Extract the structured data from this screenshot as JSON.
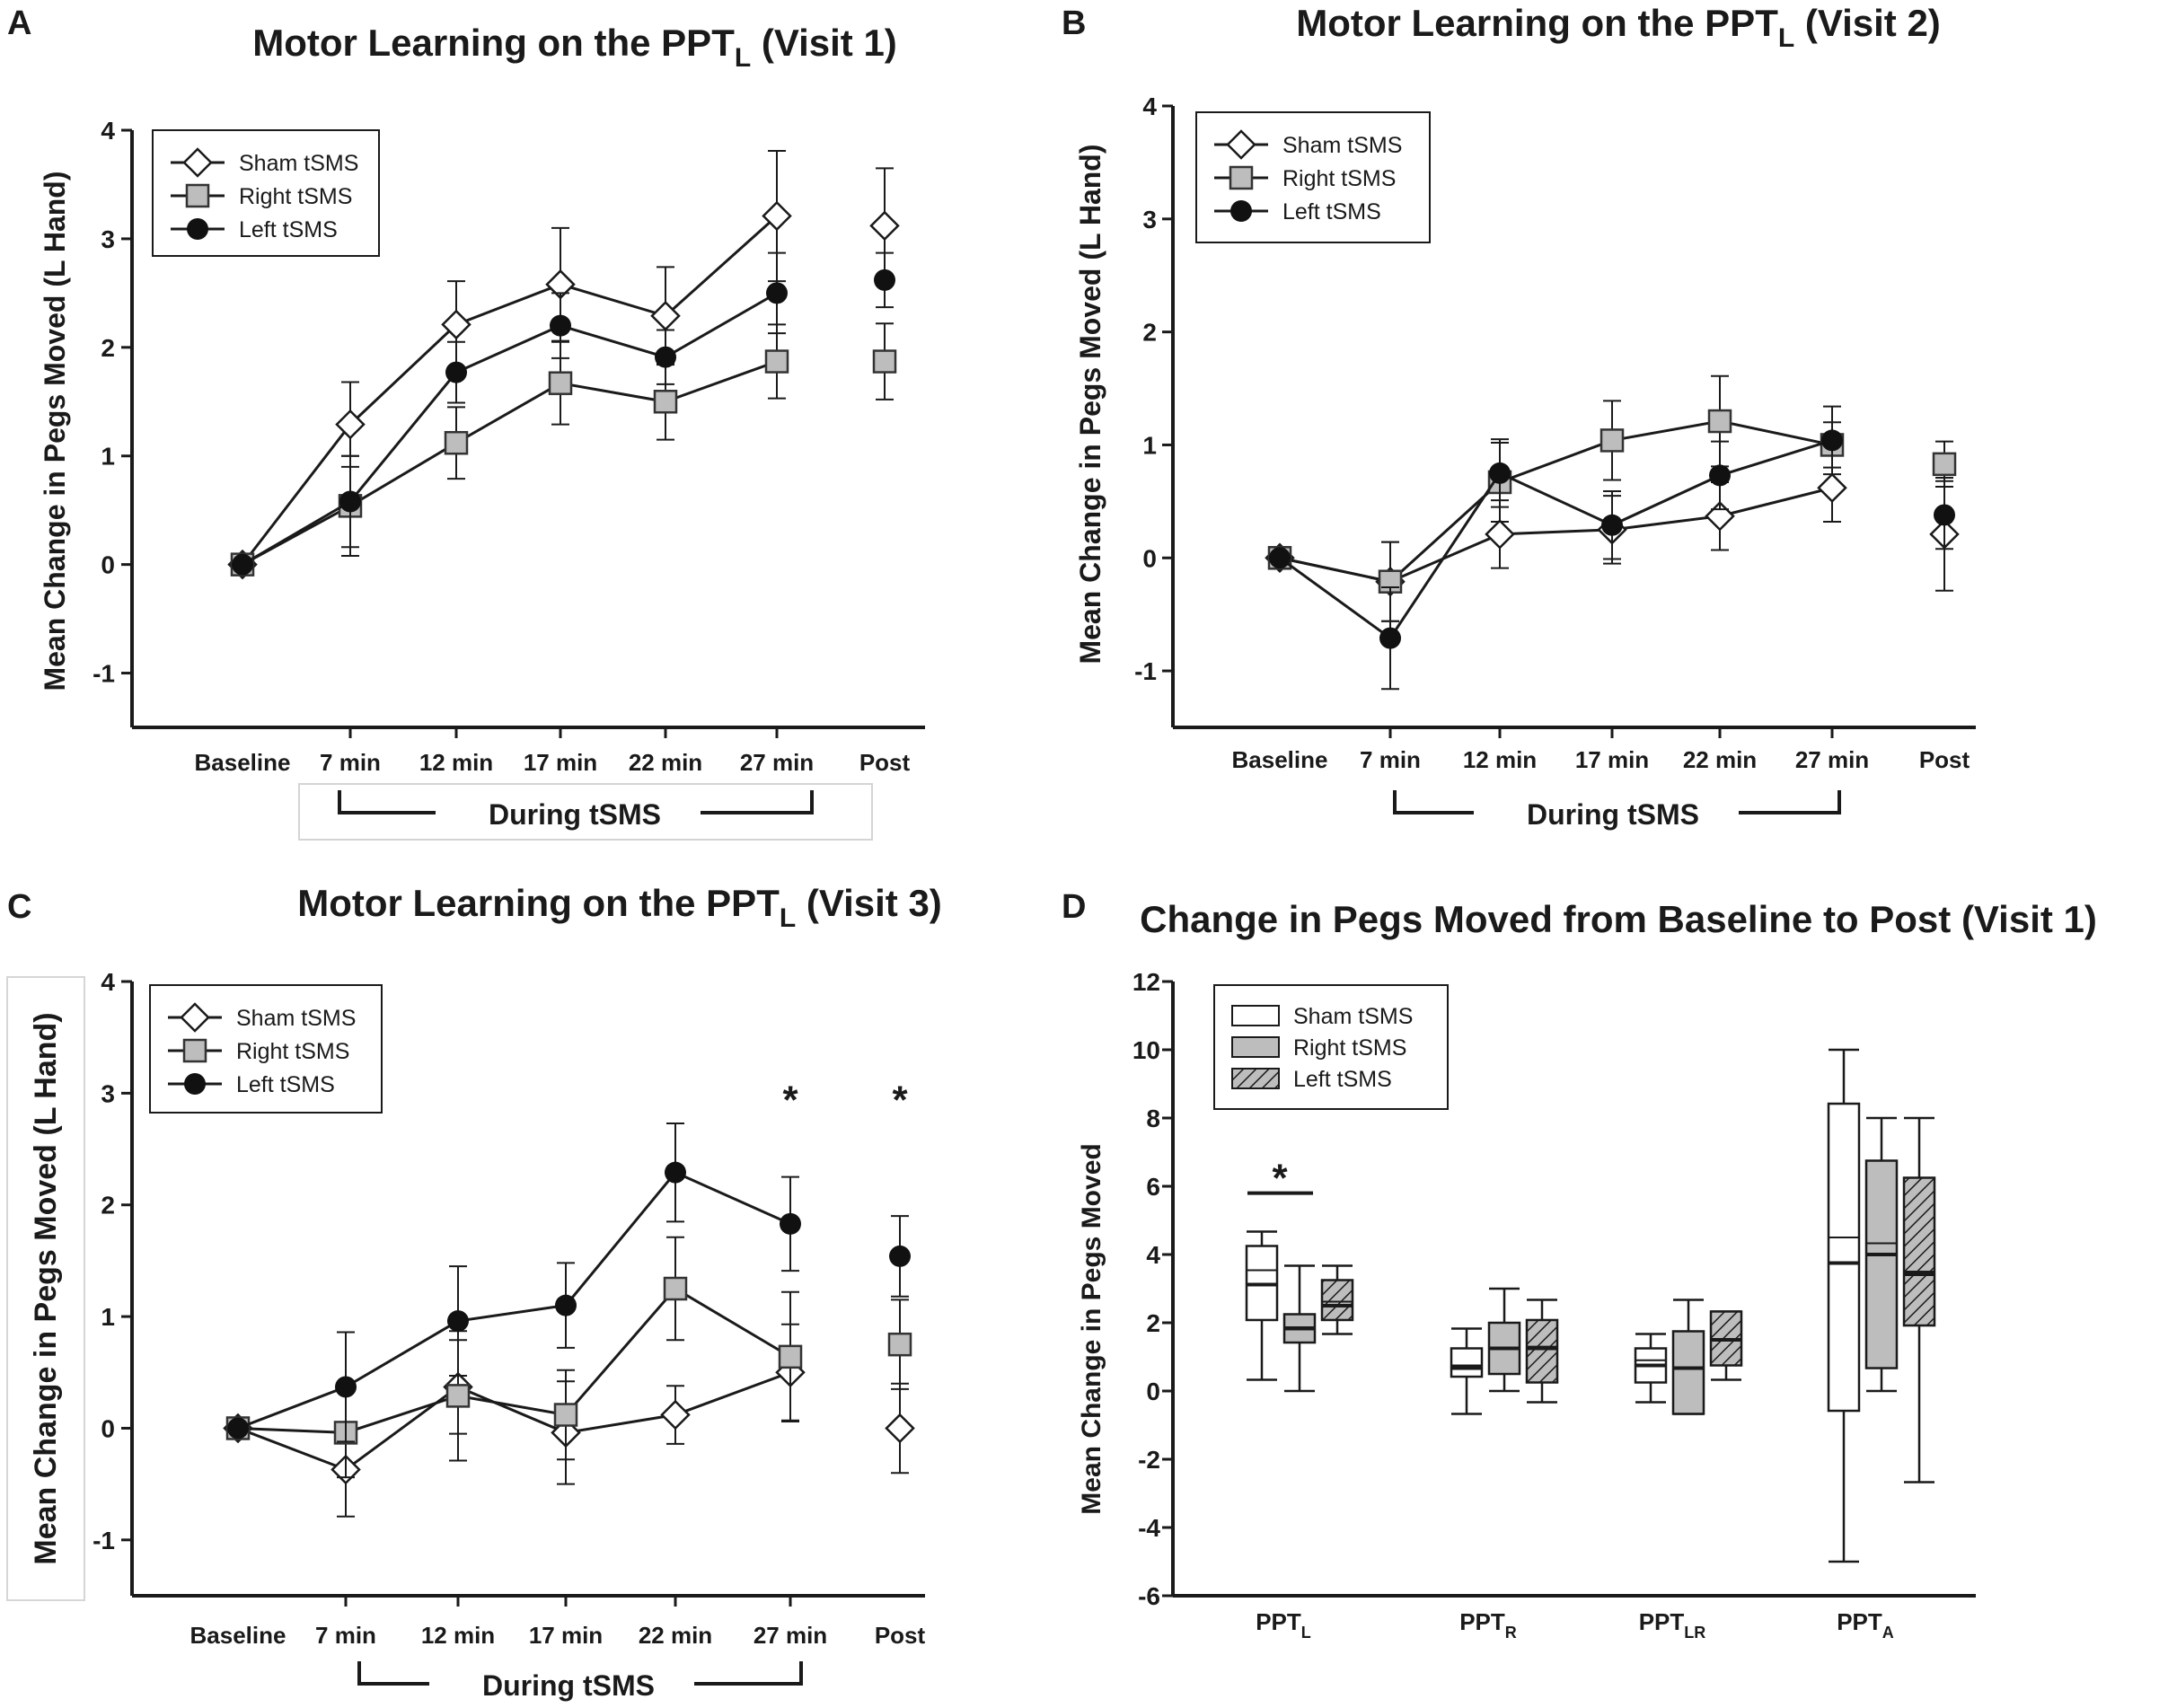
{
  "chart_data": [
    {
      "panel": "A",
      "type": "line",
      "title": "Motor Learning on the PPT",
      "title_sub": "L",
      "title_suffix": " (Visit 1)",
      "ylabel": "Mean Change in Pegs Moved (L Hand)",
      "xlabel": "",
      "categories": [
        "Baseline",
        "7 min",
        "12 min",
        "17 min",
        "22 min",
        "27 min",
        "Post"
      ],
      "ylim": [
        -1.5,
        4
      ],
      "yticks": [
        -1,
        0,
        1,
        2,
        3,
        4
      ],
      "bracket_label": "During tSMS",
      "legend": [
        "Sham tSMS",
        "Right tSMS",
        "Left tSMS"
      ],
      "series": [
        {
          "name": "Sham tSMS",
          "marker": "diamond",
          "values": [
            0,
            1.29,
            2.21,
            2.58,
            2.29,
            3.21,
            3.12
          ],
          "errors": [
            0,
            0.39,
            0.4,
            0.52,
            0.45,
            0.6,
            0.53
          ]
        },
        {
          "name": "Right tSMS",
          "marker": "square",
          "values": [
            0,
            0.54,
            1.12,
            1.67,
            1.5,
            1.87,
            1.87
          ],
          "errors": [
            0,
            0.46,
            0.33,
            0.38,
            0.35,
            0.34,
            0.35
          ]
        },
        {
          "name": "Left tSMS",
          "marker": "circle",
          "values": [
            0,
            0.58,
            1.77,
            2.2,
            1.91,
            2.5,
            2.62
          ],
          "errors": [
            0,
            0.42,
            0.28,
            0.3,
            0.25,
            0.37,
            0.25
          ]
        }
      ],
      "annotations": []
    },
    {
      "panel": "B",
      "type": "line",
      "title": "Motor Learning on the PPT",
      "title_sub": "L",
      "title_suffix": " (Visit 2)",
      "ylabel": "Mean Change in Pegs Moved (L Hand)",
      "xlabel": "",
      "categories": [
        "Baseline",
        "7 min",
        "12 min",
        "17 min",
        "22 min",
        "27 min",
        "Post"
      ],
      "ylim": [
        -1.5,
        4
      ],
      "yticks": [
        -1,
        0,
        1,
        2,
        3,
        4
      ],
      "bracket_label": "During tSMS",
      "legend": [
        "Sham tSMS",
        "Right tSMS",
        "Left tSMS"
      ],
      "series": [
        {
          "name": "Sham tSMS",
          "marker": "diamond",
          "values": [
            0,
            -0.21,
            0.21,
            0.25,
            0.37,
            0.62,
            0.21
          ],
          "errors": [
            0,
            0.35,
            0.3,
            0.3,
            0.3,
            0.3,
            0.5
          ]
        },
        {
          "name": "Right tSMS",
          "marker": "square",
          "values": [
            0,
            -0.21,
            0.67,
            1.04,
            1.21,
            1.0,
            0.83
          ],
          "errors": [
            0,
            0.35,
            0.35,
            0.35,
            0.4,
            0.2,
            0.2
          ]
        },
        {
          "name": "Left tSMS",
          "marker": "circle",
          "values": [
            0,
            -0.71,
            0.75,
            0.29,
            0.73,
            1.04,
            0.38
          ],
          "errors": [
            0,
            0.45,
            0.3,
            0.3,
            0.3,
            0.3,
            0.3
          ]
        }
      ],
      "annotations": []
    },
    {
      "panel": "C",
      "type": "line",
      "title": "Motor Learning on the PPT",
      "title_sub": "L",
      "title_suffix": " (Visit 3)",
      "ylabel": "Mean Change in Pegs Moved (L Hand)",
      "xlabel": "",
      "categories": [
        "Baseline",
        "7 min",
        "12 min",
        "17 min",
        "22 min",
        "27 min",
        "Post"
      ],
      "ylim": [
        -1.5,
        4
      ],
      "yticks": [
        -1,
        0,
        1,
        2,
        3,
        4
      ],
      "bracket_label": "During tSMS",
      "legend": [
        "Sham tSMS",
        "Right tSMS",
        "Left tSMS"
      ],
      "series": [
        {
          "name": "Sham tSMS",
          "marker": "diamond",
          "values": [
            0,
            -0.37,
            0.37,
            -0.04,
            0.12,
            0.5,
            0.0
          ],
          "errors": [
            0,
            0.42,
            0.42,
            0.46,
            0.26,
            0.43,
            0.4
          ]
        },
        {
          "name": "Right tSMS",
          "marker": "square",
          "values": [
            0,
            -0.04,
            0.29,
            0.12,
            1.25,
            0.64,
            0.75
          ],
          "errors": [
            0,
            0.4,
            0.58,
            0.4,
            0.46,
            0.58,
            0.4
          ]
        },
        {
          "name": "Left tSMS",
          "marker": "circle",
          "values": [
            0,
            0.37,
            0.96,
            1.1,
            2.29,
            1.83,
            1.54
          ],
          "errors": [
            0,
            0.49,
            0.49,
            0.38,
            0.44,
            0.42,
            0.36
          ]
        }
      ],
      "annotations": [
        {
          "text": "*",
          "category": "27 min",
          "y": 3.0
        },
        {
          "text": "*",
          "category": "Post",
          "y": 3.0
        }
      ]
    },
    {
      "panel": "D",
      "type": "box",
      "title": "Change in Pegs Moved from Baseline to Post (Visit 1)",
      "ylabel": "Mean Change in Pegs Moved",
      "xlabel": "",
      "categories": [
        {
          "main": "PPT",
          "sub": "L"
        },
        {
          "main": "PPT",
          "sub": "R"
        },
        {
          "main": "PPT",
          "sub": "LR"
        },
        {
          "main": "PPT",
          "sub": "A"
        }
      ],
      "ylim": [
        -6,
        12
      ],
      "yticks": [
        -6,
        -4,
        -2,
        0,
        2,
        4,
        6,
        8,
        10,
        12
      ],
      "legend": [
        "Sham tSMS",
        "Right tSMS",
        "Left tSMS"
      ],
      "series": [
        {
          "name": "Sham tSMS",
          "fill": "white",
          "boxes": [
            {
              "min": 0.33,
              "q1": 2.08,
              "median": 3.12,
              "mean": 3.54,
              "q3": 4.25,
              "max": 4.67
            },
            {
              "min": -0.67,
              "q1": 0.42,
              "median": 0.67,
              "mean": 0.75,
              "q3": 1.25,
              "max": 1.83
            },
            {
              "min": -0.33,
              "q1": 0.25,
              "median": 0.75,
              "mean": 0.9,
              "q3": 1.25,
              "max": 1.67
            },
            {
              "min": -5.0,
              "q1": -0.58,
              "median": 3.75,
              "mean": 4.5,
              "q3": 8.42,
              "max": 10.0
            }
          ]
        },
        {
          "name": "Right tSMS",
          "fill": "gray",
          "boxes": [
            {
              "min": 0.0,
              "q1": 1.42,
              "median": 1.83,
              "mean": 1.87,
              "q3": 2.25,
              "max": 3.67
            },
            {
              "min": 0.0,
              "q1": 0.5,
              "median": 1.25,
              "mean": 1.25,
              "q3": 2.0,
              "max": 3.0
            },
            {
              "min": -0.67,
              "q1": -0.67,
              "median": 0.67,
              "mean": 0.67,
              "q3": 1.75,
              "max": 2.67
            },
            {
              "min": 0.0,
              "q1": 0.67,
              "median": 4.0,
              "mean": 4.33,
              "q3": 6.75,
              "max": 8.0
            }
          ]
        },
        {
          "name": "Left tSMS",
          "fill": "hatched",
          "boxes": [
            {
              "min": 1.67,
              "q1": 2.08,
              "median": 2.5,
              "mean": 2.62,
              "q3": 3.25,
              "max": 3.67
            },
            {
              "min": -0.33,
              "q1": 0.25,
              "median": 1.25,
              "mean": 1.3,
              "q3": 2.08,
              "max": 2.67
            },
            {
              "min": 0.33,
              "q1": 0.75,
              "median": 1.5,
              "mean": 1.5,
              "q3": 2.33,
              "max": 2.33
            },
            {
              "min": -2.67,
              "q1": 1.92,
              "median": 3.42,
              "mean": 3.5,
              "q3": 6.25,
              "max": 8.0
            }
          ]
        }
      ],
      "annotations": [
        {
          "text": "*",
          "category": "PPT_L",
          "y": 5.8
        }
      ]
    }
  ]
}
